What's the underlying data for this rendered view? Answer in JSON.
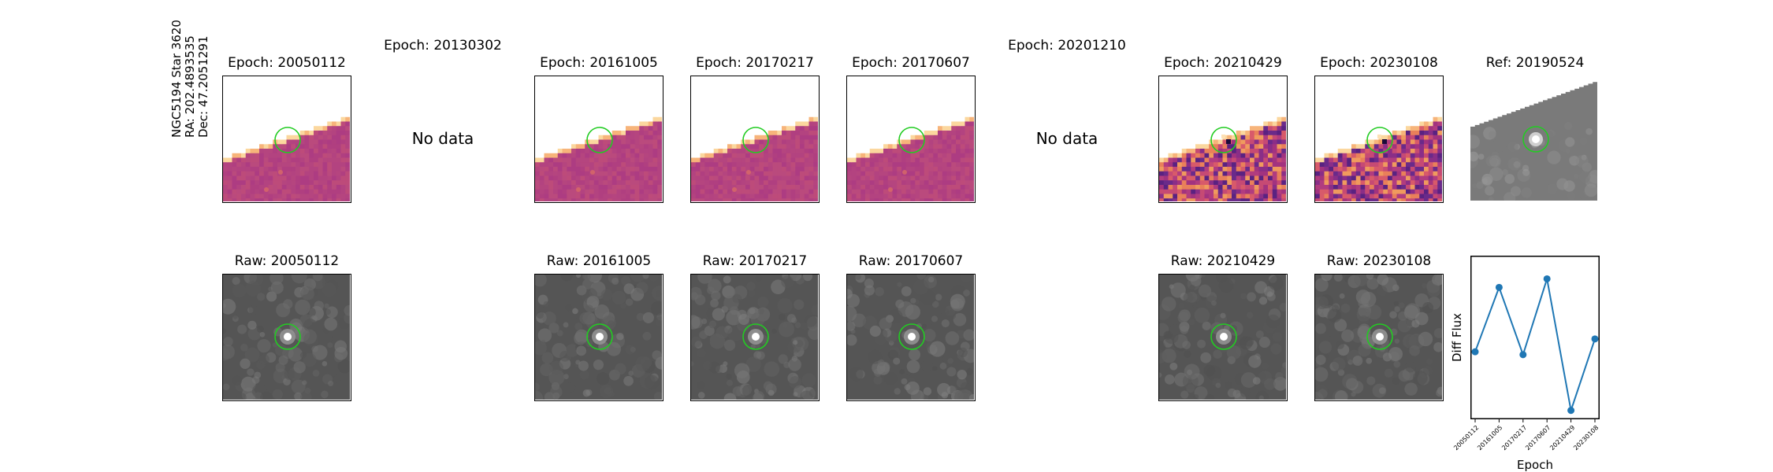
{
  "star_label": {
    "line1": "NGC5194 Star 3620",
    "line2": "RA: 202.4893535",
    "line3": "Dec: 47.2051291"
  },
  "no_data_text": "No data",
  "top_row": [
    {
      "title": "Epoch: 20050112",
      "kind": "diff",
      "variant": 1
    },
    {
      "title": "Epoch: 20130302",
      "kind": "nodata"
    },
    {
      "title": "Epoch: 20161005",
      "kind": "diff",
      "variant": 1
    },
    {
      "title": "Epoch: 20170217",
      "kind": "diff",
      "variant": 1
    },
    {
      "title": "Epoch: 20170607",
      "kind": "diff",
      "variant": 1
    },
    {
      "title": "Epoch: 20201210",
      "kind": "nodata"
    },
    {
      "title": "Epoch: 20210429",
      "kind": "diff",
      "variant": 2
    },
    {
      "title": "Epoch: 20230108",
      "kind": "diff",
      "variant": 3
    },
    {
      "title": "Ref: 20190524",
      "kind": "ref"
    }
  ],
  "bottom_row": [
    {
      "title": "Raw: 20050112",
      "kind": "raw"
    },
    {
      "title": "",
      "kind": "empty"
    },
    {
      "title": "Raw: 20161005",
      "kind": "raw"
    },
    {
      "title": "Raw: 20170217",
      "kind": "raw"
    },
    {
      "title": "Raw: 20170607",
      "kind": "raw"
    },
    {
      "title": "",
      "kind": "empty"
    },
    {
      "title": "Raw: 20210429",
      "kind": "raw"
    },
    {
      "title": "Raw: 20230108",
      "kind": "raw"
    }
  ],
  "colors": {
    "circle": "#22cc22",
    "line": "#1f77b4",
    "diff_base": "#b5457f",
    "raw_base": "#4a4a4a"
  },
  "chart_data": {
    "type": "line",
    "xlabel": "Epoch",
    "ylabel": "Diff Flux",
    "categories": [
      "20050112",
      "20161005",
      "20170217",
      "20170607",
      "20210429",
      "20230108"
    ],
    "values": [
      0.35,
      0.8,
      0.33,
      0.86,
      -0.06,
      0.44
    ],
    "ylim": [
      -0.1,
      1.0
    ],
    "yticks_shown": false,
    "grid": false
  }
}
